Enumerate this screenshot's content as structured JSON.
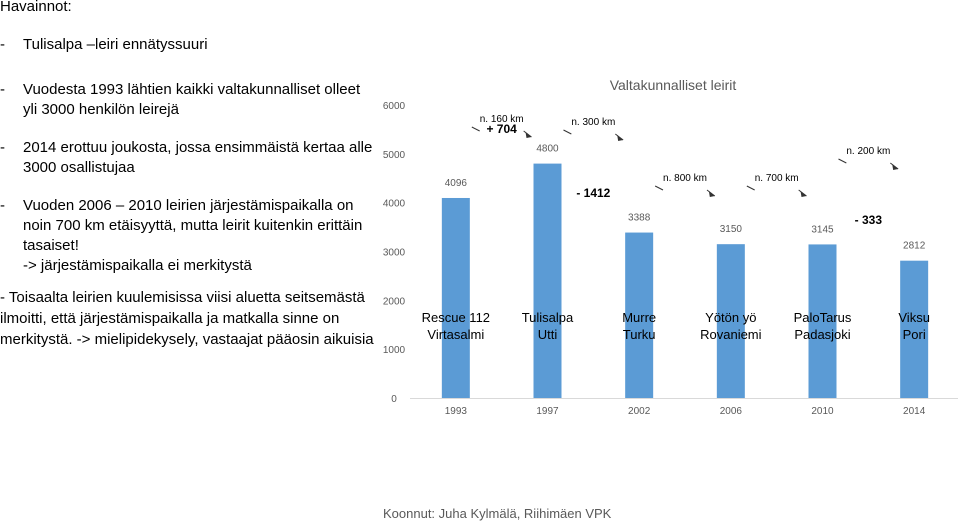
{
  "observations": {
    "title": "Havainnot:",
    "items": [
      {
        "dash": "-",
        "lines": [
          "Tulisalpa –leiri ennätyssuuri"
        ]
      },
      {
        "dash": "-",
        "lines": [
          "Vuodesta 1993 lähtien kaikki valtakunnalliset olleet",
          "yli 3000 henkilön leirejä"
        ]
      },
      {
        "dash": "-",
        "lines": [
          "2014 erottuu joukosta, jossa ensimmäistä kertaa alle",
          "3000 osallistujaa"
        ]
      },
      {
        "dash": "-",
        "lines": [
          "Vuoden 2006 – 2010 leirien järjestämispaikalla on",
          "noin 700 km etäisyyttä, mutta leirit kuitenkin erittäin",
          "tasaiset!",
          " -> järjestämispaikalla ei merkitystä"
        ]
      }
    ],
    "note": "- Toisaalta leirien kuulemisissa viisi aluetta seitsemästä ilmoitti, että järjestämispaikalla ja matkalla sinne on merkitystä. -> mielipidekysely, vastaajat pääosin aikuisia"
  },
  "chart_data": {
    "type": "bar",
    "title": "Valtakunnalliset leirit",
    "categories": [
      "1993",
      "1997",
      "2002",
      "2006",
      "2010",
      "2014"
    ],
    "values": [
      4096,
      4800,
      3388,
      3150,
      3145,
      2812
    ],
    "ylim": [
      0,
      6000
    ],
    "yticks": [
      "0",
      "1000",
      "2000",
      "3000",
      "4000",
      "5000",
      "6000"
    ],
    "bar_color": "#5B9BD5",
    "camp_names": [
      [
        "Rescue 112",
        "Virtasalmi"
      ],
      [
        "Tulisalpa",
        "Utti"
      ],
      [
        "Murre",
        "Turku"
      ],
      [
        "Yötön yö",
        "Rovaniemi"
      ],
      [
        "PaloTarus",
        "Padasjoki"
      ],
      [
        "Viksu",
        "Pori"
      ]
    ],
    "changes": [
      {
        "between": [
          0,
          1
        ],
        "text": "+ 704"
      },
      {
        "between": [
          1,
          2
        ],
        "text": "- 1412"
      },
      {
        "between": [
          4,
          5
        ],
        "text": "- 333"
      }
    ],
    "distances": [
      {
        "between": [
          0,
          1
        ],
        "text": "n. 160 km"
      },
      {
        "between": [
          1,
          2
        ],
        "text": "n. 300 km"
      },
      {
        "between": [
          2,
          3
        ],
        "text": "n. 800 km"
      },
      {
        "between": [
          3,
          4
        ],
        "text": "n. 700 km"
      },
      {
        "between": [
          4,
          5
        ],
        "text": "n. 200 km"
      }
    ],
    "grid": false
  },
  "footer": "Koonnut: Juha Kylmälä, Riihimäen VPK"
}
